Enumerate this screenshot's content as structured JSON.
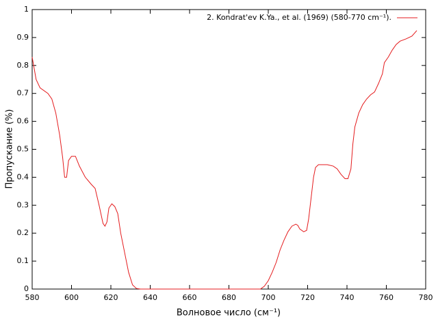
{
  "chart_data": {
    "type": "line",
    "x_label": "Волновое число (см⁻¹)",
    "y_label": "Пропускание (%)",
    "xlim": [
      580,
      780
    ],
    "ylim": [
      0,
      1
    ],
    "xticks": [
      580,
      600,
      620,
      640,
      660,
      680,
      700,
      720,
      740,
      760,
      780
    ],
    "yticks": [
      0,
      0.1,
      0.2,
      0.3,
      0.4,
      0.5,
      0.6,
      0.7,
      0.8,
      0.9,
      1
    ],
    "legend": "top-right",
    "series": [
      {
        "name": "2. Kondrat'ev K.Ya., et al. (1969) (580-770 cm⁻¹).",
        "color": "#e41a1c",
        "x": [
          580,
          581,
          582,
          584,
          588,
          590,
          592,
          594,
          595.5,
          596.5,
          597.5,
          598.5,
          600,
          602,
          604,
          607,
          610,
          612,
          614,
          616,
          617,
          618,
          619,
          620.5,
          622,
          623.5,
          625,
          627,
          629,
          631,
          633,
          635,
          660,
          680,
          696,
          698,
          700,
          702,
          704,
          706,
          708,
          710,
          712,
          714,
          715,
          716,
          718,
          719.5,
          720.5,
          722,
          723,
          724,
          725.5,
          730,
          733,
          735,
          737,
          739,
          740.5,
          742,
          743,
          744,
          746,
          748,
          750,
          752,
          754,
          756,
          758,
          759,
          761,
          763,
          765,
          767,
          770,
          773,
          775.5
        ],
        "values": [
          0.83,
          0.79,
          0.75,
          0.72,
          0.7,
          0.68,
          0.63,
          0.55,
          0.47,
          0.4,
          0.4,
          0.46,
          0.475,
          0.475,
          0.44,
          0.4,
          0.375,
          0.36,
          0.3,
          0.235,
          0.225,
          0.24,
          0.29,
          0.305,
          0.295,
          0.27,
          0.2,
          0.13,
          0.06,
          0.015,
          0.002,
          0,
          0,
          0,
          0,
          0.01,
          0.03,
          0.06,
          0.095,
          0.14,
          0.175,
          0.205,
          0.225,
          0.232,
          0.228,
          0.215,
          0.205,
          0.21,
          0.25,
          0.34,
          0.4,
          0.435,
          0.445,
          0.445,
          0.44,
          0.43,
          0.41,
          0.395,
          0.395,
          0.43,
          0.52,
          0.58,
          0.63,
          0.66,
          0.68,
          0.695,
          0.705,
          0.735,
          0.77,
          0.81,
          0.83,
          0.855,
          0.875,
          0.887,
          0.895,
          0.905,
          0.925
        ]
      }
    ]
  }
}
